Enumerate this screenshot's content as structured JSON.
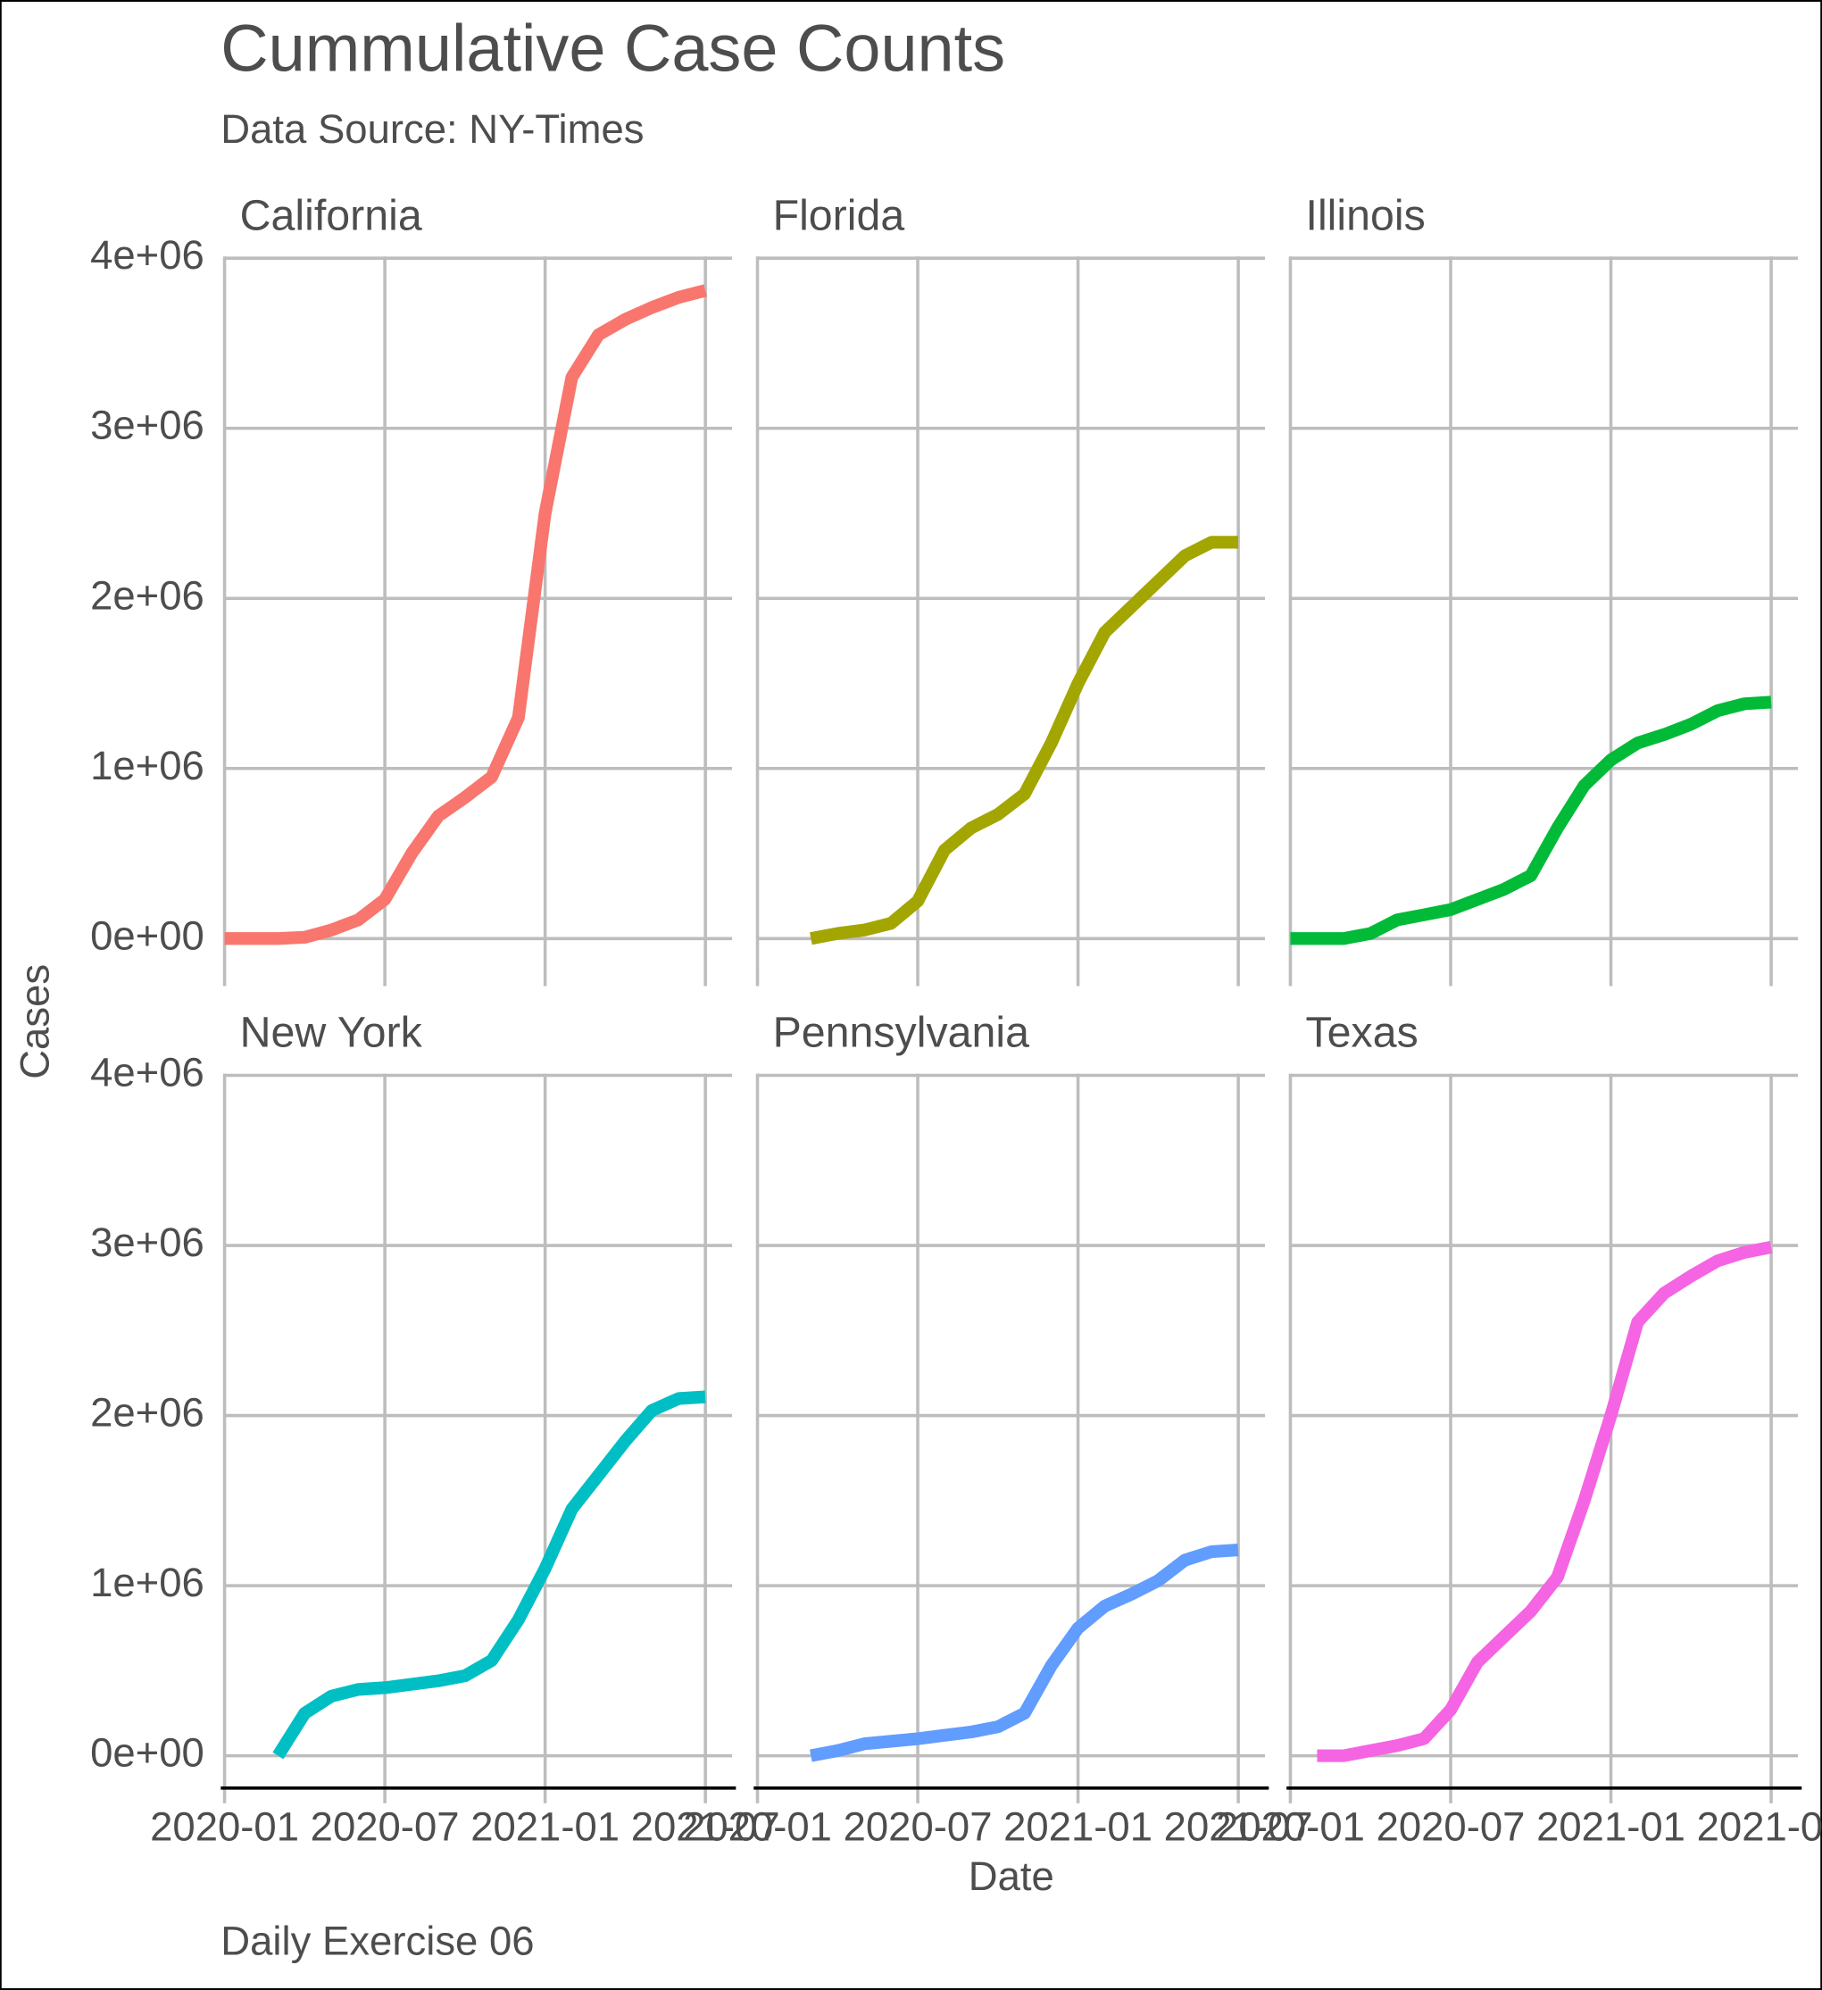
{
  "chart_data": {
    "type": "line",
    "title": "Cummulative Case Counts",
    "subtitle": "Data Source: NY-Times",
    "caption": "Daily Exercise 06",
    "x_label": "Date",
    "y_label": "Cases",
    "x": [
      "2020-01",
      "2020-02",
      "2020-03",
      "2020-04",
      "2020-05",
      "2020-06",
      "2020-07",
      "2020-08",
      "2020-09",
      "2020-10",
      "2020-11",
      "2020-12",
      "2021-01",
      "2021-02",
      "2021-03",
      "2021-04",
      "2021-05",
      "2021-06",
      "2021-07"
    ],
    "xlim": [
      "2020-01",
      "2021-08"
    ],
    "xticks": [
      "2020-01",
      "2020-07",
      "2021-01",
      "2021-07"
    ],
    "ylim": [
      -190000,
      4010000
    ],
    "yticks": [
      {
        "value": 0,
        "label": "0e+00"
      },
      {
        "value": 1000000,
        "label": "1e+06"
      },
      {
        "value": 2000000,
        "label": "2e+06"
      },
      {
        "value": 3000000,
        "label": "3e+06"
      },
      {
        "value": 4000000,
        "label": "4e+06"
      }
    ],
    "grid": true,
    "series": [
      {
        "name": "California",
        "color": "#F8766D",
        "values": [
          0,
          0,
          0,
          8000,
          50000,
          110000,
          230000,
          500000,
          720000,
          830000,
          950000,
          1300000,
          2500000,
          3300000,
          3550000,
          3640000,
          3710000,
          3770000,
          3810000
        ]
      },
      {
        "name": "Florida",
        "color": "#A3A500",
        "values": [
          null,
          null,
          0,
          30000,
          50000,
          90000,
          220000,
          520000,
          650000,
          730000,
          850000,
          1150000,
          1500000,
          1800000,
          1950000,
          2100000,
          2250000,
          2330000,
          2330000
        ]
      },
      {
        "name": "Illinois",
        "color": "#00BA38",
        "values": [
          0,
          0,
          0,
          30000,
          110000,
          140000,
          170000,
          230000,
          290000,
          370000,
          650000,
          900000,
          1050000,
          1150000,
          1200000,
          1260000,
          1340000,
          1380000,
          1390000
        ]
      },
      {
        "name": "New York",
        "color": "#00BFC4",
        "values": [
          null,
          null,
          0,
          250000,
          350000,
          390000,
          400000,
          420000,
          440000,
          470000,
          560000,
          800000,
          1100000,
          1450000,
          1650000,
          1850000,
          2030000,
          2100000,
          2110000
        ]
      },
      {
        "name": "Pennsylvania",
        "color": "#619CFF",
        "values": [
          null,
          null,
          0,
          30000,
          70000,
          85000,
          100000,
          120000,
          140000,
          170000,
          250000,
          530000,
          750000,
          880000,
          950000,
          1030000,
          1150000,
          1200000,
          1210000
        ]
      },
      {
        "name": "Texas",
        "color": "#F564E3",
        "values": [
          null,
          0,
          0,
          30000,
          60000,
          100000,
          270000,
          550000,
          700000,
          850000,
          1050000,
          1500000,
          2000000,
          2550000,
          2720000,
          2820000,
          2910000,
          2960000,
          2990000
        ]
      }
    ]
  }
}
